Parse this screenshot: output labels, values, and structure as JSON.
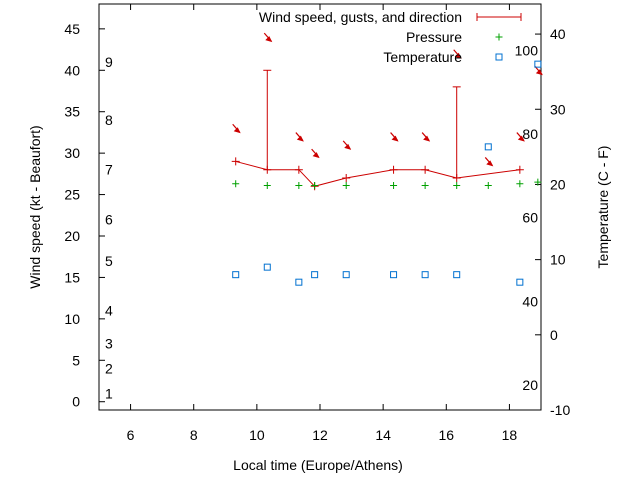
{
  "chart_data": {
    "type": "line",
    "xlabel": "Local time (Europe/Athens)",
    "ylabel_left": "Wind speed (kt - Beaufort)",
    "ylabel_right": "Temperature (C - F)",
    "xlim": [
      5.0,
      19.0
    ],
    "ylim_left": [
      -1,
      48
    ],
    "ylim_right": [
      -10,
      44
    ],
    "x_ticks": [
      6,
      8,
      10,
      12,
      14,
      16,
      18
    ],
    "y_ticks_left": [
      0,
      5,
      10,
      15,
      20,
      25,
      30,
      35,
      40,
      45
    ],
    "y_ticks_right": [
      -10,
      0,
      10,
      20,
      30,
      40
    ],
    "beaufort_labels": [
      {
        "label": "1",
        "kt": 1
      },
      {
        "label": "2",
        "kt": 4
      },
      {
        "label": "3",
        "kt": 7
      },
      {
        "label": "4",
        "kt": 11
      },
      {
        "label": "5",
        "kt": 17
      },
      {
        "label": "6",
        "kt": 22
      },
      {
        "label": "7",
        "kt": 28
      },
      {
        "label": "8",
        "kt": 34
      },
      {
        "label": "9",
        "kt": 41
      }
    ],
    "fahrenheit_labels": [
      {
        "label": "20",
        "celsius": -6.7
      },
      {
        "label": "40",
        "celsius": 4.4
      },
      {
        "label": "60",
        "celsius": 15.6
      },
      {
        "label": "80",
        "celsius": 26.7
      },
      {
        "label": "100",
        "celsius": 37.8
      }
    ],
    "legend_position": "top-right",
    "series": [
      {
        "name": "Wind speed, gusts, and direction",
        "color": "#cc0000",
        "x": [
          9.33,
          10.33,
          11.33,
          11.83,
          12.83,
          14.33,
          15.33,
          16.33,
          18.33
        ],
        "y": [
          29,
          28,
          28,
          26,
          27,
          28,
          28,
          27,
          28
        ],
        "gust": [
          29,
          40,
          28,
          26,
          27,
          28,
          28,
          38,
          28
        ],
        "direction_arrows": [
          {
            "x": 9.33,
            "y": 33
          },
          {
            "x": 10.33,
            "y": 44
          },
          {
            "x": 11.33,
            "y": 32
          },
          {
            "x": 11.83,
            "y": 30
          },
          {
            "x": 12.83,
            "y": 31
          },
          {
            "x": 14.33,
            "y": 32
          },
          {
            "x": 15.33,
            "y": 32
          },
          {
            "x": 16.33,
            "y": 42
          },
          {
            "x": 17.33,
            "y": 29
          },
          {
            "x": 18.33,
            "y": 32
          },
          {
            "x": 18.9,
            "y": 40
          }
        ]
      },
      {
        "name": "Pressure",
        "color": "#00a000",
        "x": [
          9.33,
          10.33,
          11.33,
          11.83,
          12.83,
          14.33,
          15.33,
          16.33,
          17.33,
          18.33,
          18.9
        ],
        "y": [
          26.3,
          26.1,
          26.1,
          26.1,
          26.1,
          26.1,
          26.1,
          26.1,
          26.1,
          26.3,
          26.5
        ]
      },
      {
        "name": "Temperature",
        "color": "#0070d0",
        "axis": "right",
        "x": [
          9.33,
          10.33,
          11.33,
          11.83,
          12.83,
          14.33,
          15.33,
          16.33,
          17.33,
          18.33,
          18.9
        ],
        "y": [
          8.0,
          9.0,
          7.0,
          8.0,
          8.0,
          8.0,
          8.0,
          8.0,
          25.0,
          7.0,
          36.0
        ]
      }
    ]
  }
}
